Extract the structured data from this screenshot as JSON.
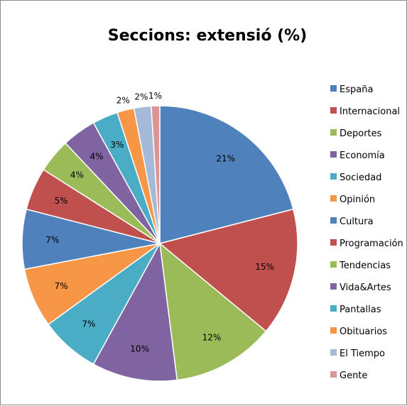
{
  "chart_data": {
    "type": "pie",
    "title": "Seccions: extensió (%)",
    "categories": [
      "España",
      "Internacional",
      "Deportes",
      "Economía",
      "Sociedad",
      "Opinión",
      "Cultura",
      "Programación",
      "Tendencias",
      "Vida&Artes",
      "Pantallas",
      "Obituarios",
      "El Tiempo",
      "Gente"
    ],
    "values": [
      21,
      15,
      12,
      10,
      7,
      7,
      7,
      5,
      4,
      4,
      3,
      2,
      2,
      1
    ],
    "labels": [
      "21%",
      "15%",
      "12%",
      "10%",
      "7%",
      "7%",
      "7%",
      "5%",
      "4%",
      "4%",
      "3%",
      "2%",
      "2%",
      "1%"
    ],
    "colors": [
      "#4f81bd",
      "#c0504d",
      "#9bbb59",
      "#8064a2",
      "#4bacc6",
      "#f79646",
      "#4f81bd",
      "#c0504d",
      "#9bbb59",
      "#8064a2",
      "#4bacc6",
      "#f79646",
      "#a5b9d8",
      "#d99694"
    ],
    "legend_position": "right"
  }
}
